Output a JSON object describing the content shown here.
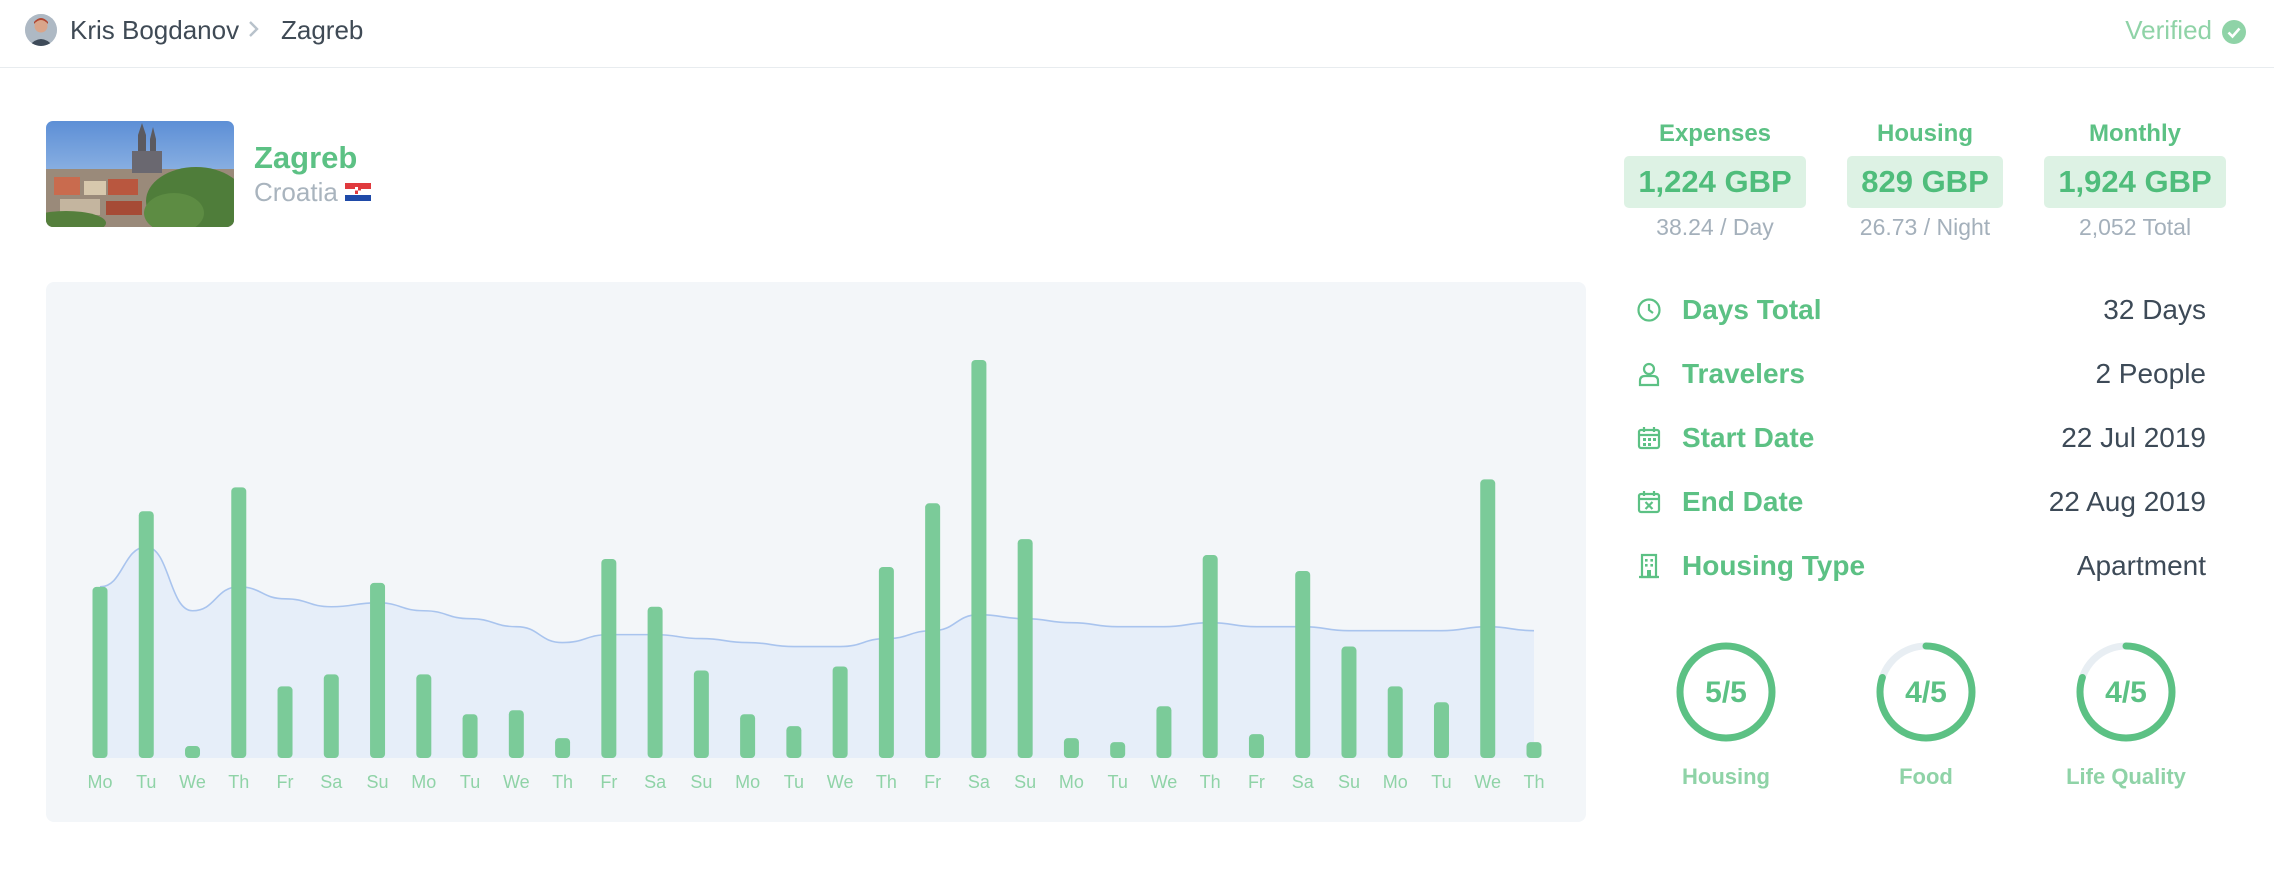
{
  "breadcrumb": {
    "user": "Kris Bogdanov",
    "city": "Zagreb"
  },
  "status": {
    "verified_label": "Verified",
    "color": "#8fd3a7"
  },
  "city": {
    "name": "Zagreb",
    "country": "Croatia",
    "flag": "croatia-flag"
  },
  "stats": [
    {
      "label": "Expenses",
      "value": "1,224 GBP",
      "sub": "38.24 / Day"
    },
    {
      "label": "Housing",
      "value": "829 GBP",
      "sub": "26.73 / Night"
    },
    {
      "label": "Monthly",
      "value": "1,924 GBP",
      "sub": "2,052 Total"
    }
  ],
  "info": [
    {
      "icon": "clock-icon",
      "label": "Days Total",
      "value": "32 Days"
    },
    {
      "icon": "person-icon",
      "label": "Travelers",
      "value": "2 People"
    },
    {
      "icon": "calendar-icon",
      "label": "Start Date",
      "value": "22 Jul 2019"
    },
    {
      "icon": "calendar-x-icon",
      "label": "End Date",
      "value": "22 Aug 2019"
    },
    {
      "icon": "building-icon",
      "label": "Housing Type",
      "value": "Apartment"
    }
  ],
  "ratings": [
    {
      "label": "Housing",
      "score": "5/5",
      "fraction": 1.0
    },
    {
      "label": "Food",
      "score": "4/5",
      "fraction": 0.8
    },
    {
      "label": "Life Quality",
      "score": "4/5",
      "fraction": 0.8
    }
  ],
  "colors": {
    "accent": "#5cc184",
    "bar": "#7bcb99",
    "line": "#a9c4ee",
    "area": "#e6eef9"
  },
  "chart_data": {
    "type": "bar",
    "categories": [
      "Mo",
      "Tu",
      "We",
      "Th",
      "Fr",
      "Sa",
      "Su",
      "Mo",
      "Tu",
      "We",
      "Th",
      "Fr",
      "Sa",
      "Su",
      "Mo",
      "Tu",
      "We",
      "Th",
      "Fr",
      "Sa",
      "Su",
      "Mo",
      "Tu",
      "We",
      "Th",
      "Fr",
      "Sa",
      "Su",
      "Mo",
      "Tu",
      "We",
      "Th"
    ],
    "values": [
      43,
      62,
      3,
      68,
      18,
      21,
      44,
      21,
      11,
      12,
      5,
      50,
      38,
      22,
      11,
      8,
      23,
      48,
      64,
      100,
      55,
      5,
      4,
      13,
      51,
      6,
      47,
      28,
      18,
      14,
      70,
      4
    ],
    "trend": [
      43,
      53,
      37,
      43,
      40,
      38,
      39,
      37,
      35,
      33,
      29,
      31,
      31,
      30,
      29,
      28,
      28,
      30,
      32,
      36,
      35,
      34,
      33,
      33,
      34,
      33,
      33,
      32,
      32,
      32,
      33,
      32
    ],
    "ylim": [
      0,
      100
    ],
    "grid": false
  }
}
